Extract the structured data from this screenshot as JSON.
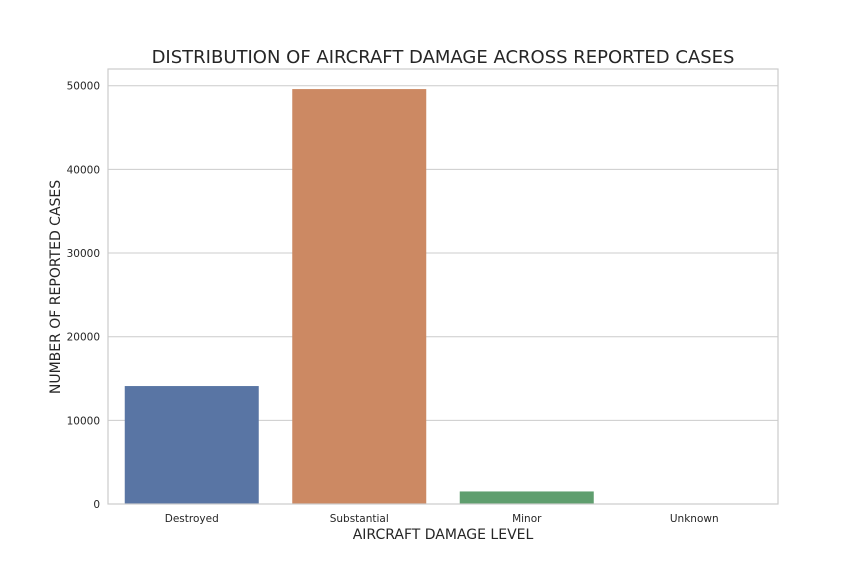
{
  "chart_data": {
    "type": "bar",
    "title": "DISTRIBUTION OF AIRCRAFT DAMAGE ACROSS REPORTED CASES",
    "xlabel": "AIRCRAFT DAMAGE LEVEL",
    "ylabel": "NUMBER OF REPORTED CASES",
    "categories": [
      "Destroyed",
      "Substantial",
      "Minor",
      "Unknown"
    ],
    "values": [
      14100,
      49600,
      1500,
      50
    ],
    "colors": [
      "#5975a4",
      "#cc8963",
      "#5f9e6e",
      "#b55d60"
    ],
    "ylim": [
      0,
      52000
    ],
    "yticks": [
      0,
      10000,
      20000,
      30000,
      40000,
      50000
    ],
    "grid": "y",
    "legend": "none"
  }
}
